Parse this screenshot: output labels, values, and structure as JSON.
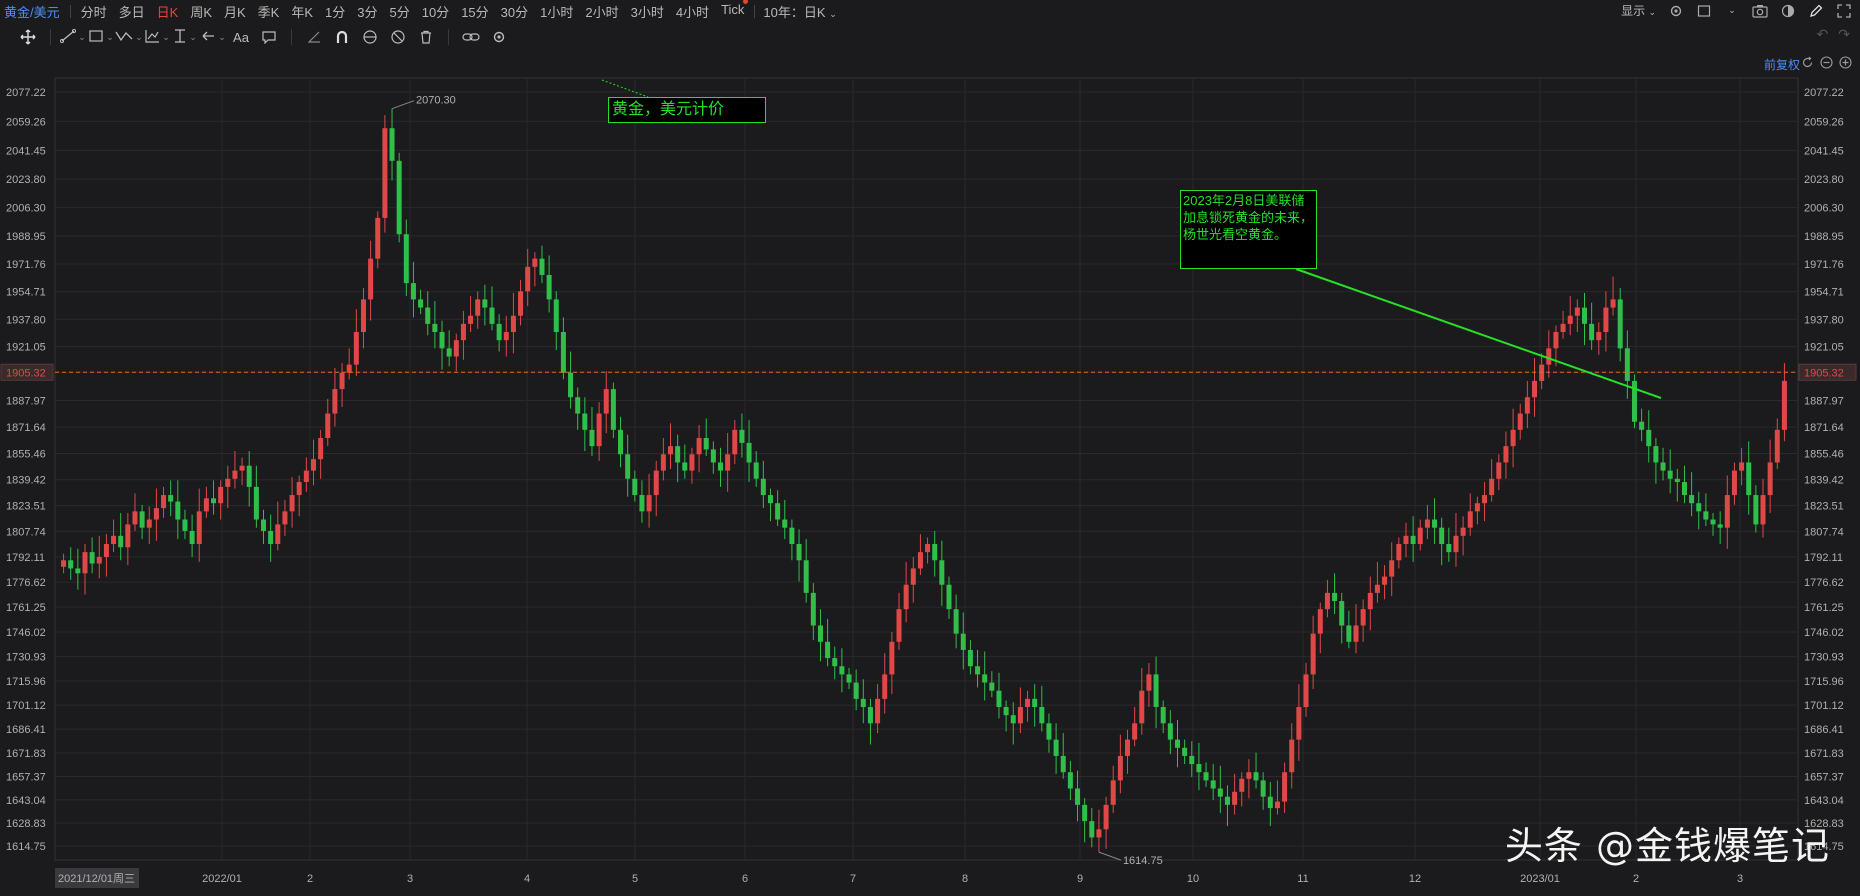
{
  "topbar": {
    "symbol": "黄金/美元",
    "periods": [
      "分时",
      "多日",
      "日K",
      "周K",
      "月K",
      "季K",
      "年K",
      "1分",
      "3分",
      "5分",
      "10分",
      "15分",
      "30分",
      "1小时",
      "2小时",
      "3小时",
      "4小时",
      "Tick"
    ],
    "active_period": "日K",
    "range_label": "10年：日K",
    "display_label": "显示"
  },
  "toolbar": {
    "text_tool_label": "Aa"
  },
  "header": {
    "fuquan_label": "前复权"
  },
  "colors": {
    "up": "#e04848",
    "down": "#2fbf4a",
    "grid": "#2a2a2c",
    "price_line": "#e86a1a",
    "annotation": "#26e026",
    "background": "#1b1b1d"
  },
  "chart_data": {
    "type": "candlestick",
    "y_ticks": [
      "2077.22",
      "2059.26",
      "2041.45",
      "2023.80",
      "2006.30",
      "1988.95",
      "1971.76",
      "1954.71",
      "1937.80",
      "1921.05",
      "1905.32",
      "1887.97",
      "1871.64",
      "1855.46",
      "1839.42",
      "1823.51",
      "1807.74",
      "1792.11",
      "1776.62",
      "1761.25",
      "1746.02",
      "1730.93",
      "1715.96",
      "1701.12",
      "1686.41",
      "1671.83",
      "1657.37",
      "1643.04",
      "1628.83",
      "1614.75"
    ],
    "x_ticks": [
      "2021/12/01周三",
      "2022/01",
      "2",
      "3",
      "4",
      "5",
      "6",
      "7",
      "8",
      "9",
      "10",
      "11",
      "12",
      "2023/01",
      "2",
      "3"
    ],
    "current_price": "1905.32",
    "high_label": "2070.30",
    "low_label": "1614.75",
    "closes": [
      1790,
      1785,
      1782,
      1795,
      1788,
      1792,
      1800,
      1805,
      1798,
      1812,
      1820,
      1810,
      1815,
      1822,
      1830,
      1826,
      1815,
      1808,
      1800,
      1820,
      1828,
      1825,
      1835,
      1840,
      1845,
      1848,
      1835,
      1815,
      1808,
      1800,
      1812,
      1820,
      1830,
      1838,
      1845,
      1852,
      1865,
      1880,
      1895,
      1905,
      1910,
      1930,
      1950,
      1975,
      2000,
      2055,
      2035,
      1990,
      1960,
      1950,
      1945,
      1935,
      1930,
      1920,
      1915,
      1925,
      1935,
      1940,
      1950,
      1945,
      1935,
      1925,
      1930,
      1940,
      1955,
      1970,
      1975,
      1965,
      1950,
      1930,
      1905,
      1890,
      1880,
      1870,
      1860,
      1880,
      1895,
      1870,
      1855,
      1840,
      1830,
      1820,
      1830,
      1845,
      1855,
      1860,
      1850,
      1845,
      1855,
      1865,
      1858,
      1850,
      1845,
      1855,
      1870,
      1862,
      1850,
      1840,
      1830,
      1825,
      1815,
      1810,
      1800,
      1790,
      1770,
      1750,
      1740,
      1730,
      1725,
      1720,
      1715,
      1705,
      1700,
      1690,
      1705,
      1720,
      1740,
      1760,
      1775,
      1785,
      1795,
      1800,
      1790,
      1775,
      1760,
      1745,
      1735,
      1725,
      1720,
      1715,
      1710,
      1700,
      1695,
      1690,
      1700,
      1705,
      1700,
      1690,
      1680,
      1670,
      1660,
      1650,
      1640,
      1630,
      1620,
      1625,
      1640,
      1655,
      1670,
      1680,
      1690,
      1710,
      1720,
      1700,
      1690,
      1680,
      1675,
      1670,
      1665,
      1660,
      1655,
      1650,
      1645,
      1640,
      1648,
      1656,
      1660,
      1655,
      1645,
      1638,
      1642,
      1660,
      1680,
      1700,
      1720,
      1745,
      1760,
      1770,
      1765,
      1750,
      1740,
      1750,
      1760,
      1770,
      1775,
      1780,
      1790,
      1800,
      1805,
      1800,
      1810,
      1815,
      1810,
      1800,
      1795,
      1805,
      1810,
      1820,
      1825,
      1830,
      1840,
      1850,
      1860,
      1870,
      1880,
      1890,
      1900,
      1910,
      1920,
      1930,
      1935,
      1940,
      1945,
      1935,
      1925,
      1930,
      1945,
      1950,
      1920,
      1900,
      1875,
      1870,
      1860,
      1850,
      1845,
      1840,
      1838,
      1830,
      1825,
      1820,
      1815,
      1812,
      1810,
      1830,
      1845,
      1850,
      1830,
      1812,
      1830,
      1850,
      1870,
      1900
    ]
  },
  "annotations": {
    "title_note": "黄金，美元计价",
    "event_note": "2023年2月8日美联储加息锁死黄金的未来，杨世光看空黄金。"
  },
  "watermark": "头条 @金钱爆笔记"
}
